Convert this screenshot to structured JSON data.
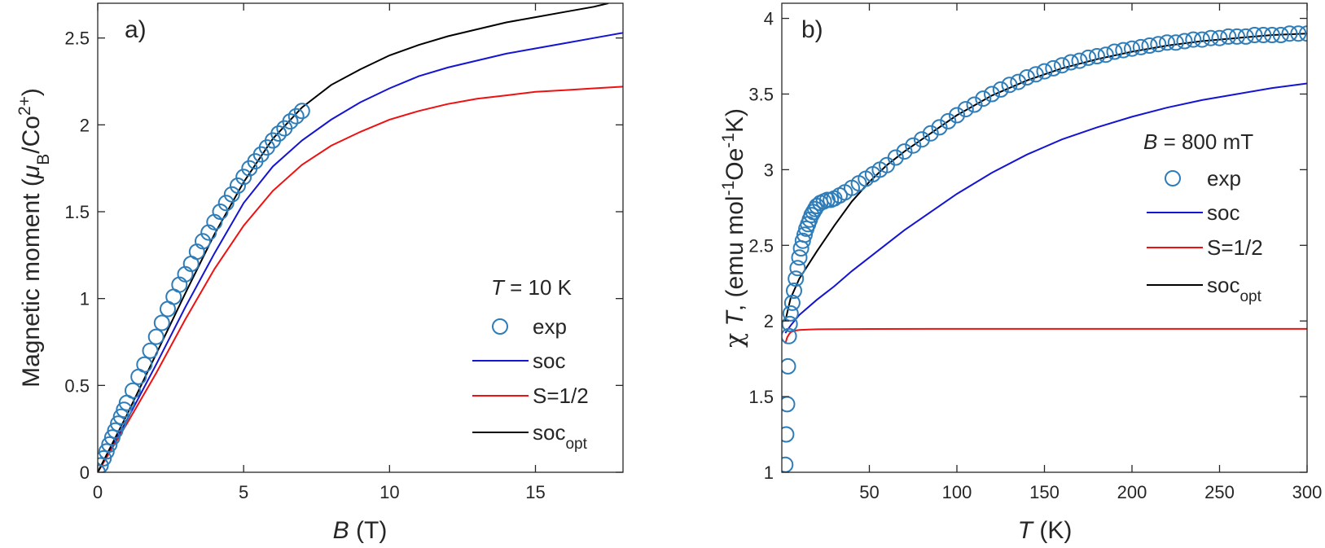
{
  "chart_data": [
    {
      "type": "line",
      "panel_label": "a)",
      "xlabel": {
        "var": "B",
        "unit": "(T)"
      },
      "ylabel": {
        "main": "Magnetic moment (",
        "mu": "μ",
        "sub1": "B",
        "mid": "/Co",
        "sup": "2+",
        "end": ")"
      },
      "xlim": [
        0,
        18
      ],
      "ylim": [
        0,
        2.7
      ],
      "xticks": [
        0,
        5,
        10,
        15
      ],
      "yticks": [
        0,
        0.5,
        1,
        1.5,
        2,
        2.5
      ],
      "xtick_labels": [
        "0",
        "5",
        "10",
        "15"
      ],
      "ytick_labels": [
        "0",
        "0.5",
        "1",
        "1.5",
        "2",
        "2.5"
      ],
      "legend": {
        "title": {
          "var": "T",
          "rest": " = 10 K"
        },
        "location": "bottom-right",
        "entries": [
          "exp",
          "soc",
          "S=1/2",
          "soc_opt"
        ]
      },
      "series": [
        {
          "name": "exp",
          "style": "markers",
          "color": "#2F7DB8",
          "x": [
            0.0,
            0.1,
            0.2,
            0.3,
            0.4,
            0.5,
            0.6,
            0.7,
            0.8,
            0.9,
            1.0,
            1.2,
            1.4,
            1.6,
            1.8,
            2.0,
            2.2,
            2.4,
            2.6,
            2.8,
            3.0,
            3.2,
            3.4,
            3.6,
            3.8,
            4.0,
            4.2,
            4.4,
            4.6,
            4.8,
            5.0,
            5.2,
            5.4,
            5.6,
            5.8,
            6.0,
            6.2,
            6.4,
            6.6,
            6.8,
            7.0
          ],
          "y": [
            0.0,
            0.04,
            0.08,
            0.12,
            0.16,
            0.2,
            0.24,
            0.28,
            0.32,
            0.36,
            0.4,
            0.47,
            0.55,
            0.62,
            0.7,
            0.78,
            0.86,
            0.94,
            1.01,
            1.08,
            1.14,
            1.2,
            1.27,
            1.33,
            1.38,
            1.44,
            1.5,
            1.55,
            1.6,
            1.65,
            1.7,
            1.75,
            1.79,
            1.83,
            1.87,
            1.91,
            1.95,
            1.98,
            2.02,
            2.05,
            2.08
          ]
        },
        {
          "name": "soc",
          "style": "line",
          "color": "#1414D2",
          "x": [
            0,
            1,
            2,
            3,
            4,
            5,
            6,
            7,
            8,
            9,
            10,
            11,
            12,
            13,
            14,
            15,
            16,
            17,
            18
          ],
          "y": [
            0,
            0.3,
            0.62,
            0.95,
            1.26,
            1.55,
            1.76,
            1.91,
            2.03,
            2.13,
            2.21,
            2.28,
            2.33,
            2.37,
            2.41,
            2.44,
            2.47,
            2.5,
            2.53
          ]
        },
        {
          "name": "S=1/2",
          "style": "line",
          "color": "#EE1111",
          "x": [
            0,
            1,
            2,
            3,
            4,
            5,
            6,
            7,
            8,
            9,
            10,
            11,
            12,
            13,
            14,
            15,
            16,
            17,
            18
          ],
          "y": [
            0,
            0.28,
            0.57,
            0.88,
            1.17,
            1.42,
            1.62,
            1.77,
            1.88,
            1.96,
            2.03,
            2.08,
            2.12,
            2.15,
            2.17,
            2.19,
            2.2,
            2.21,
            2.22
          ]
        },
        {
          "name": "soc_opt",
          "style": "line",
          "color": "#000000",
          "x": [
            0,
            1,
            2,
            3,
            4,
            5,
            6,
            7,
            8,
            9,
            10,
            11,
            12,
            13,
            14,
            15,
            16,
            17,
            17.5
          ],
          "y": [
            0,
            0.33,
            0.68,
            1.03,
            1.37,
            1.67,
            1.92,
            2.1,
            2.23,
            2.32,
            2.4,
            2.46,
            2.51,
            2.55,
            2.59,
            2.62,
            2.65,
            2.68,
            2.7
          ]
        }
      ]
    },
    {
      "type": "line",
      "panel_label": "b)",
      "xlabel": {
        "var": "T",
        "unit": "(K)"
      },
      "ylabel": {
        "chi": "χ",
        "T": "T",
        "rest1": ", (emu mol",
        "sup1": "-1",
        "rest2": "Oe",
        "sup2": "-1",
        "rest3": "K)"
      },
      "xlim": [
        0,
        300
      ],
      "ylim": [
        1,
        4.1
      ],
      "xticks": [
        50,
        100,
        150,
        200,
        250,
        300
      ],
      "yticks": [
        1,
        1.5,
        2,
        2.5,
        3,
        3.5,
        4
      ],
      "xtick_labels": [
        "50",
        "100",
        "150",
        "200",
        "250",
        "300"
      ],
      "ytick_labels": [
        "1",
        "1.5",
        "2",
        "2.5",
        "3",
        "3.5",
        "4"
      ],
      "legend": {
        "title": {
          "var": "B",
          "rest": " = 800 mT"
        },
        "location": "top-right",
        "entries": [
          "exp",
          "soc",
          "S=1/2",
          "soc_opt"
        ]
      },
      "series": [
        {
          "name": "exp",
          "style": "markers",
          "color": "#2F7DB8",
          "x": [
            2,
            2.5,
            3,
            3.5,
            4,
            4.5,
            5,
            6,
            7,
            8,
            9,
            10,
            11,
            12,
            13,
            14,
            15,
            16,
            17,
            18,
            19,
            20,
            22,
            24,
            26,
            28,
            30,
            33,
            36,
            40,
            44,
            48,
            52,
            56,
            60,
            65,
            70,
            75,
            80,
            85,
            90,
            95,
            100,
            105,
            110,
            115,
            120,
            125,
            130,
            135,
            140,
            145,
            150,
            155,
            160,
            165,
            170,
            175,
            180,
            185,
            190,
            195,
            200,
            205,
            210,
            215,
            220,
            225,
            230,
            235,
            240,
            245,
            250,
            255,
            260,
            265,
            270,
            275,
            280,
            285,
            290,
            295,
            300
          ],
          "y": [
            1.05,
            1.25,
            1.45,
            1.7,
            1.9,
            1.98,
            2.05,
            2.12,
            2.2,
            2.28,
            2.35,
            2.42,
            2.48,
            2.53,
            2.57,
            2.61,
            2.64,
            2.67,
            2.7,
            2.72,
            2.74,
            2.76,
            2.78,
            2.79,
            2.8,
            2.8,
            2.81,
            2.83,
            2.85,
            2.88,
            2.91,
            2.94,
            2.97,
            3.0,
            3.03,
            3.08,
            3.12,
            3.16,
            3.2,
            3.24,
            3.28,
            3.32,
            3.36,
            3.4,
            3.43,
            3.47,
            3.5,
            3.53,
            3.56,
            3.58,
            3.61,
            3.63,
            3.65,
            3.67,
            3.69,
            3.71,
            3.72,
            3.74,
            3.75,
            3.76,
            3.78,
            3.79,
            3.8,
            3.81,
            3.82,
            3.83,
            3.84,
            3.84,
            3.85,
            3.86,
            3.86,
            3.87,
            3.87,
            3.88,
            3.88,
            3.88,
            3.89,
            3.89,
            3.89,
            3.89,
            3.9,
            3.9,
            3.9
          ]
        },
        {
          "name": "soc",
          "style": "line",
          "color": "#1414D2",
          "x": [
            2,
            5,
            10,
            20,
            30,
            40,
            50,
            60,
            70,
            80,
            100,
            120,
            140,
            160,
            180,
            200,
            220,
            240,
            260,
            280,
            300
          ],
          "y": [
            1.92,
            1.97,
            2.04,
            2.14,
            2.23,
            2.33,
            2.42,
            2.51,
            2.6,
            2.68,
            2.84,
            2.98,
            3.1,
            3.2,
            3.28,
            3.35,
            3.41,
            3.46,
            3.5,
            3.54,
            3.57
          ]
        },
        {
          "name": "S=1/2",
          "style": "line",
          "color": "#EE1111",
          "x": [
            2,
            3,
            4,
            5,
            6,
            8,
            10,
            15,
            20,
            30,
            50,
            100,
            150,
            200,
            250,
            300
          ],
          "y": [
            1.85,
            1.89,
            1.91,
            1.925,
            1.93,
            1.937,
            1.94,
            1.943,
            1.945,
            1.946,
            1.947,
            1.948,
            1.948,
            1.948,
            1.948,
            1.948
          ]
        },
        {
          "name": "soc_opt",
          "style": "line",
          "color": "#000000",
          "x": [
            2,
            5,
            10,
            20,
            30,
            40,
            50,
            60,
            70,
            80,
            100,
            120,
            140,
            160,
            180,
            200,
            220,
            240,
            260,
            280,
            300
          ],
          "y": [
            2.0,
            2.15,
            2.28,
            2.46,
            2.63,
            2.79,
            2.92,
            3.03,
            3.12,
            3.2,
            3.36,
            3.49,
            3.59,
            3.67,
            3.73,
            3.78,
            3.82,
            3.85,
            3.87,
            3.89,
            3.9
          ]
        }
      ]
    }
  ]
}
